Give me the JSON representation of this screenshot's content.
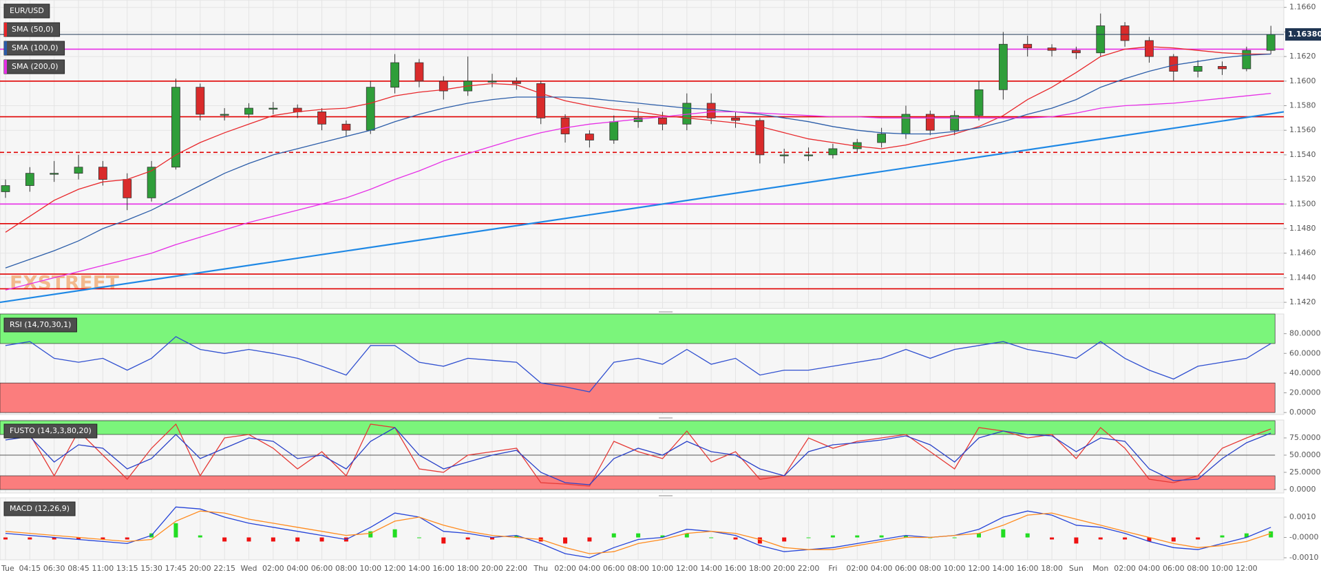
{
  "chart_data": [
    {
      "type": "candlestick",
      "title": "EUR/USD",
      "watermark": "FXSTREET",
      "categories": [
        "Tue",
        "04:15",
        "06:30",
        "08:45",
        "11:00",
        "13:15",
        "15:30",
        "17:45",
        "20:00",
        "22:15",
        "Wed",
        "02:00",
        "04:00",
        "06:00",
        "08:00",
        "10:00",
        "12:00",
        "14:00",
        "16:00",
        "18:00",
        "20:00",
        "22:00",
        "Thu",
        "02:00",
        "04:00",
        "06:00",
        "08:00",
        "10:00",
        "12:00",
        "14:00",
        "16:00",
        "18:00",
        "20:00",
        "22:00",
        "Fri",
        "02:00",
        "04:00",
        "06:00",
        "08:00",
        "10:00",
        "12:00",
        "14:00",
        "16:00",
        "18:00",
        "Sun",
        "Mon",
        "02:00",
        "04:00",
        "06:00",
        "08:00",
        "10:00",
        "12:00",
        null
      ],
      "open": [
        1.151,
        1.1515,
        1.1525,
        1.1525,
        1.153,
        1.152,
        1.1505,
        1.153,
        1.1595,
        1.1573,
        1.1573,
        1.1578,
        1.1578,
        1.1575,
        1.1565,
        1.156,
        1.1595,
        1.1615,
        1.16,
        1.1592,
        1.16,
        1.16,
        1.1598,
        1.157,
        1.1557,
        1.1552,
        1.1567,
        1.157,
        1.1565,
        1.1582,
        1.157,
        1.1568,
        1.154,
        1.154,
        1.154,
        1.1545,
        1.155,
        1.1557,
        1.1573,
        1.156,
        1.1572,
        1.1593,
        1.163,
        1.1627,
        1.1625,
        1.1623,
        1.1645,
        1.1633,
        1.162,
        1.1608,
        1.1612,
        1.161,
        1.1625
      ],
      "high": [
        1.152,
        1.153,
        1.1535,
        1.154,
        1.1535,
        1.1525,
        1.1535,
        1.1602,
        1.1598,
        1.1578,
        1.1582,
        1.1583,
        1.1581,
        1.1578,
        1.1568,
        1.16,
        1.1622,
        1.1618,
        1.1604,
        1.162,
        1.1606,
        1.1603,
        1.16,
        1.1573,
        1.156,
        1.1572,
        1.1578,
        1.1575,
        1.159,
        1.159,
        1.1575,
        1.157,
        1.1545,
        1.1546,
        1.1549,
        1.1553,
        1.1562,
        1.158,
        1.1576,
        1.1576,
        1.16,
        1.164,
        1.1637,
        1.163,
        1.1628,
        1.1655,
        1.1648,
        1.1636,
        1.1622,
        1.1617,
        1.1616,
        1.1628,
        1.1645
      ],
      "low": [
        1.1505,
        1.151,
        1.1518,
        1.152,
        1.1515,
        1.1495,
        1.1502,
        1.1528,
        1.1568,
        1.1568,
        1.157,
        1.1573,
        1.157,
        1.156,
        1.1555,
        1.1557,
        1.159,
        1.1595,
        1.1585,
        1.1588,
        1.1595,
        1.1593,
        1.1565,
        1.155,
        1.1546,
        1.1549,
        1.1562,
        1.156,
        1.156,
        1.1565,
        1.1562,
        1.1533,
        1.1533,
        1.1535,
        1.1537,
        1.1542,
        1.1546,
        1.1553,
        1.1556,
        1.1556,
        1.1568,
        1.1585,
        1.162,
        1.162,
        1.1618,
        1.162,
        1.1628,
        1.1615,
        1.16,
        1.1603,
        1.1605,
        1.1608,
        1.1622
      ],
      "close": [
        1.1515,
        1.1525,
        1.1525,
        1.153,
        1.152,
        1.1505,
        1.153,
        1.1595,
        1.1573,
        1.1573,
        1.1578,
        1.1578,
        1.1575,
        1.1565,
        1.156,
        1.1595,
        1.1615,
        1.16,
        1.1592,
        1.16,
        1.16,
        1.1598,
        1.157,
        1.1557,
        1.1552,
        1.1567,
        1.157,
        1.1565,
        1.1582,
        1.157,
        1.1568,
        1.154,
        1.154,
        1.154,
        1.1545,
        1.155,
        1.1557,
        1.1573,
        1.156,
        1.1572,
        1.1593,
        1.163,
        1.1627,
        1.1625,
        1.1623,
        1.1645,
        1.1633,
        1.162,
        1.1608,
        1.1612,
        1.161,
        1.1625,
        1.1638
      ],
      "color_up": "#2f9e3a",
      "color_down": "#d92b2b",
      "series": [
        {
          "name": "SMA (50,0)",
          "color": "#e8262a",
          "values": [
            1.1477,
            1.149,
            1.1503,
            1.1512,
            1.1518,
            1.152,
            1.1527,
            1.154,
            1.155,
            1.1558,
            1.1565,
            1.1572,
            1.1575,
            1.1577,
            1.1578,
            1.1582,
            1.1588,
            1.1591,
            1.1593,
            1.1596,
            1.1598,
            1.1597,
            1.159,
            1.1584,
            1.158,
            1.1577,
            1.1575,
            1.1572,
            1.157,
            1.1568,
            1.1566,
            1.1563,
            1.1558,
            1.1553,
            1.155,
            1.1547,
            1.1545,
            1.1548,
            1.1553,
            1.1557,
            1.1563,
            1.1572,
            1.1585,
            1.1595,
            1.1607,
            1.162,
            1.1626,
            1.1628,
            1.1627,
            1.1625,
            1.1623,
            1.1622,
            1.1622
          ]
        },
        {
          "name": "SMA (100,0)",
          "color": "#2a5ca8",
          "values": [
            1.1448,
            1.1455,
            1.1462,
            1.147,
            1.148,
            1.1487,
            1.1495,
            1.1505,
            1.1515,
            1.1525,
            1.1533,
            1.154,
            1.1545,
            1.155,
            1.1555,
            1.156,
            1.1567,
            1.1573,
            1.1578,
            1.1582,
            1.1585,
            1.1587,
            1.1587,
            1.1587,
            1.1586,
            1.1584,
            1.1582,
            1.158,
            1.1578,
            1.1577,
            1.1575,
            1.1573,
            1.157,
            1.1567,
            1.1563,
            1.156,
            1.1558,
            1.1557,
            1.1557,
            1.1559,
            1.1562,
            1.1567,
            1.1573,
            1.1578,
            1.1585,
            1.1595,
            1.1602,
            1.1608,
            1.1613,
            1.1616,
            1.1619,
            1.1621,
            1.1622
          ]
        },
        {
          "name": "SMA (200,0)",
          "color": "#e62ee6",
          "values": [
            1.143,
            1.1435,
            1.144,
            1.1445,
            1.145,
            1.1455,
            1.146,
            1.1467,
            1.1473,
            1.1479,
            1.1485,
            1.149,
            1.1495,
            1.15,
            1.1505,
            1.1512,
            1.152,
            1.1527,
            1.1535,
            1.1541,
            1.1547,
            1.1553,
            1.1558,
            1.1562,
            1.1565,
            1.1567,
            1.1569,
            1.1571,
            1.1573,
            1.1575,
            1.1575,
            1.1574,
            1.1573,
            1.1572,
            1.1571,
            1.1571,
            1.157,
            1.157,
            1.157,
            1.157,
            1.157,
            1.157,
            1.157,
            1.1571,
            1.1574,
            1.1578,
            1.158,
            1.1581,
            1.1582,
            1.1584,
            1.1586,
            1.1588,
            1.159
          ]
        }
      ],
      "levels": [
        {
          "value": 1.1626,
          "color": "#e62ee6"
        },
        {
          "value": 1.16,
          "color": "#e00000"
        },
        {
          "value": 1.1571,
          "color": "#e00000"
        },
        {
          "value": 1.1542,
          "color": "#e00000",
          "style": "dashed"
        },
        {
          "value": 1.15,
          "color": "#e62ee6"
        },
        {
          "value": 1.1484,
          "color": "#e00000"
        },
        {
          "value": 1.1443,
          "color": "#e00000"
        },
        {
          "value": 1.1431,
          "color": "#e00000"
        }
      ],
      "trendline": {
        "start": 1.142,
        "end": 1.1575,
        "color": "#1e88e5"
      },
      "last_price": {
        "value": 1.1638,
        "label": "1.16380",
        "color": "#1f3552"
      },
      "ylim": [
        1.1415,
        1.1666
      ],
      "yticks": [
        {
          "value": 1.166,
          "label": "1.1660"
        },
        {
          "value": 1.164,
          "label": "1.1640"
        },
        {
          "value": 1.162,
          "label": "1.1620"
        },
        {
          "value": 1.16,
          "label": "1.1600"
        },
        {
          "value": 1.158,
          "label": "1.1580"
        },
        {
          "value": 1.156,
          "label": "1.1560"
        },
        {
          "value": 1.154,
          "label": "1.1540"
        },
        {
          "value": 1.152,
          "label": "1.1520"
        },
        {
          "value": 1.15,
          "label": "1.1500"
        },
        {
          "value": 1.148,
          "label": "1.1480"
        },
        {
          "value": 1.146,
          "label": "1.1460"
        },
        {
          "value": 1.144,
          "label": "1.1440"
        },
        {
          "value": 1.142,
          "label": "1.1420"
        }
      ],
      "grid": true
    },
    {
      "type": "line",
      "title": "RSI (14,70,30,1)",
      "series": [
        {
          "color": "#2f4fd0",
          "values": [
            68,
            72,
            55,
            51,
            55,
            43,
            55,
            77,
            64,
            60,
            64,
            60,
            55,
            47,
            38,
            68,
            68,
            51,
            47,
            55,
            53,
            51,
            30,
            26,
            21,
            51,
            55,
            49,
            64,
            49,
            55,
            38,
            43,
            43,
            47,
            51,
            55,
            64,
            55,
            64,
            68,
            72,
            64,
            60,
            55,
            72,
            55,
            43,
            34,
            47,
            51,
            55,
            70
          ]
        }
      ],
      "zones": [
        {
          "from": 70,
          "to": 100,
          "color": "#7bf57b"
        },
        {
          "from": 0,
          "to": 30,
          "color": "#fb7d7d"
        }
      ],
      "ylim": [
        -2,
        100
      ],
      "yticks": [
        {
          "value": 80,
          "label": "80.0000"
        },
        {
          "value": 60,
          "label": "60.0000"
        },
        {
          "value": 40,
          "label": "40.0000"
        },
        {
          "value": 20,
          "label": "20.0000"
        },
        {
          "value": 0,
          "label": "0.0000"
        }
      ]
    },
    {
      "type": "line",
      "title": "FUSTO (14,3,3,80,20)",
      "series": [
        {
          "color": "#e53935",
          "values": [
            75,
            80,
            20,
            85,
            50,
            15,
            60,
            95,
            20,
            75,
            80,
            60,
            30,
            55,
            20,
            95,
            90,
            30,
            25,
            50,
            55,
            60,
            10,
            8,
            5,
            70,
            55,
            45,
            85,
            40,
            55,
            15,
            20,
            75,
            60,
            70,
            75,
            80,
            55,
            30,
            90,
            85,
            75,
            80,
            45,
            90,
            60,
            15,
            10,
            20,
            60,
            75,
            88
          ]
        },
        {
          "color": "#2840c8",
          "values": [
            72,
            77,
            40,
            65,
            60,
            30,
            45,
            80,
            45,
            60,
            75,
            70,
            45,
            50,
            30,
            70,
            90,
            50,
            30,
            40,
            50,
            57,
            25,
            10,
            7,
            45,
            60,
            50,
            70,
            55,
            50,
            30,
            20,
            55,
            65,
            68,
            72,
            78,
            65,
            40,
            75,
            85,
            80,
            78,
            55,
            75,
            70,
            30,
            13,
            15,
            45,
            68,
            82
          ]
        }
      ],
      "zones": [
        {
          "from": 80,
          "to": 100,
          "color": "#7bf57b"
        },
        {
          "from": 0,
          "to": 20,
          "color": "#fb7d7d"
        }
      ],
      "midline": 50,
      "ylim": [
        -5,
        101
      ],
      "yticks": [
        {
          "value": 75,
          "label": "75.0000"
        },
        {
          "value": 50,
          "label": "50.0000"
        },
        {
          "value": 25,
          "label": "25.0000"
        },
        {
          "value": 0,
          "label": "0.0000"
        }
      ]
    },
    {
      "type": "line",
      "title": "MACD (12,26,9)",
      "series": [
        {
          "kind": "histogram",
          "color": "#22dd22",
          "color_negative": "#ee1111",
          "values": [
            -0.0001,
            -0.0001,
            -0.0001,
            -0.0001,
            -0.0001,
            -0.0001,
            0.0002,
            0.0007,
            0.0001,
            -0.0002,
            -0.0002,
            -0.0002,
            -0.0002,
            -0.0002,
            -0.0002,
            0.0003,
            0.0004,
            0,
            -0.0003,
            -0.0001,
            -0.0001,
            0.0001,
            -0.0002,
            -0.0003,
            -0.0002,
            0.0002,
            0.0002,
            0.0001,
            0.0002,
            0,
            -0.0001,
            -0.0003,
            -0.0002,
            0,
            0.0001,
            0.0001,
            0.0001,
            0.0001,
            0,
            0,
            0.0002,
            0.0004,
            0.0002,
            -0.0001,
            -0.0003,
            -0.0001,
            -0.0001,
            -0.0002,
            -0.0002,
            -0.0001,
            0.0001,
            0.0002,
            0.0003
          ]
        },
        {
          "color": "#2342d8",
          "values": [
            0.0002,
            0.0001,
            0,
            -0.0001,
            -0.0002,
            -0.0003,
            0.0001,
            0.0015,
            0.0014,
            0.001,
            0.0007,
            0.0005,
            0.0003,
            0.0001,
            -0.0001,
            0.0005,
            0.0012,
            0.001,
            0.0003,
            0.0002,
            0,
            0.0001,
            -0.0003,
            -0.0008,
            -0.001,
            -0.0005,
            -0.0001,
            0,
            0.0004,
            0.0003,
            0.0001,
            -0.0004,
            -0.0007,
            -0.0006,
            -0.0005,
            -0.0003,
            -0.0001,
            0.0001,
            0,
            0.0001,
            0.0004,
            0.001,
            0.0013,
            0.0011,
            0.0006,
            0.0005,
            0.0002,
            -0.0002,
            -0.0005,
            -0.0006,
            -0.0003,
            0,
            0.0005
          ]
        },
        {
          "color": "#ff8a1c",
          "values": [
            0.0003,
            0.0002,
            0.0001,
            0,
            -0.0001,
            -0.0002,
            -0.0001,
            0.0008,
            0.0013,
            0.0012,
            0.0009,
            0.0007,
            0.0005,
            0.0003,
            0.0001,
            0.0002,
            0.0008,
            0.001,
            0.0006,
            0.0003,
            0.0001,
            0,
            -0.0001,
            -0.0005,
            -0.0008,
            -0.0007,
            -0.0003,
            -0.0001,
            0.0002,
            0.0003,
            0.0002,
            -0.0001,
            -0.0005,
            -0.0006,
            -0.0006,
            -0.0004,
            -0.0002,
            0,
            0,
            0.0001,
            0.0002,
            0.0006,
            0.0011,
            0.0012,
            0.0009,
            0.0006,
            0.0003,
            0,
            -0.0003,
            -0.0005,
            -0.0004,
            -0.0002,
            0.0002
          ]
        }
      ],
      "ylim": [
        -0.0011,
        0.00195
      ],
      "yticks": [
        {
          "value": 0.001,
          "label": "0.0010"
        },
        {
          "value": 0,
          "label": "-0.0000"
        },
        {
          "value": -0.001,
          "label": "-0.0010"
        }
      ]
    }
  ]
}
